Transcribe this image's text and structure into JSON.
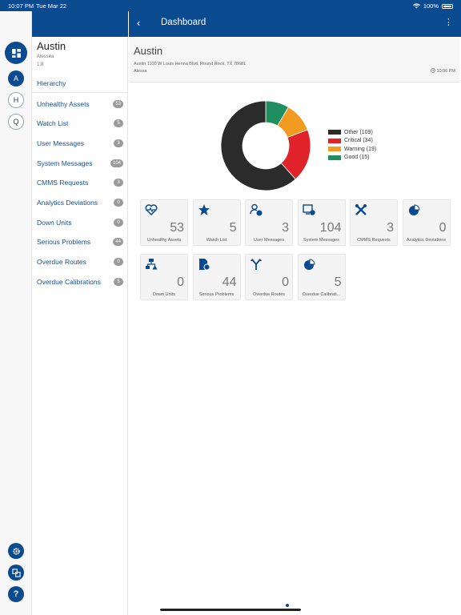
{
  "status": {
    "time": "10:07 PM",
    "date": "Tue Mar 22",
    "battery": "100%"
  },
  "header": {
    "title": "Dashboard",
    "back": "‹",
    "more": "⋮"
  },
  "rail": {
    "a": "A",
    "h": "H",
    "q": "Q",
    "help": "?"
  },
  "sidebar": {
    "title": "Austin",
    "user": "Alessea",
    "version": "1.8",
    "items": [
      {
        "label": "Hierarchy",
        "badge": ""
      },
      {
        "label": "Unhealthy Assets",
        "badge": "53"
      },
      {
        "label": "Watch List",
        "badge": "5"
      },
      {
        "label": "User Messages",
        "badge": "3"
      },
      {
        "label": "System Messages",
        "badge": "104"
      },
      {
        "label": "CMMS Requests",
        "badge": "3"
      },
      {
        "label": "Analytics Deviations",
        "badge": "0"
      },
      {
        "label": "Down Units",
        "badge": "0"
      },
      {
        "label": "Serious Problems",
        "badge": "44"
      },
      {
        "label": "Overdue Routes",
        "badge": "0"
      },
      {
        "label": "Overdue Calibrations",
        "badge": "5"
      }
    ]
  },
  "location": {
    "name": "Austin",
    "address": "Austin 1100 W Louis Henna Blvd, Round Rock, TX 78681",
    "user": "Alessa",
    "time": "10:06 PM"
  },
  "chart_data": {
    "type": "pie",
    "categories": [
      "Other",
      "Critical",
      "Warning",
      "Good"
    ],
    "values": [
      109,
      34,
      19,
      15
    ],
    "legend": [
      "Other (109)",
      "Critical (34)",
      "Warning (19)",
      "Good (15)"
    ],
    "colors": [
      "#2b2b2b",
      "#e0232a",
      "#f39a21",
      "#1f8f5f"
    ],
    "legend_position": "right"
  },
  "tiles": [
    {
      "icon": "heartbeat-icon",
      "value": "53",
      "label": "Unhealthy Assets"
    },
    {
      "icon": "star-icon",
      "value": "5",
      "label": "Watch List"
    },
    {
      "icon": "user-message-icon",
      "value": "3",
      "label": "User Messages"
    },
    {
      "icon": "system-message-icon",
      "value": "104",
      "label": "System Messages"
    },
    {
      "icon": "tools-icon",
      "value": "3",
      "label": "CMMS Requests"
    },
    {
      "icon": "pie-chart-icon",
      "value": "0",
      "label": "Analytics Deviations"
    },
    {
      "icon": "down-units-icon",
      "value": "0",
      "label": "Down Units"
    },
    {
      "icon": "serious-document-icon",
      "value": "44",
      "label": "Serious Problems"
    },
    {
      "icon": "route-icon",
      "value": "0",
      "label": "Overdue Routes"
    },
    {
      "icon": "calibration-icon",
      "value": "5",
      "label": "Overdue Calibrati..."
    }
  ]
}
